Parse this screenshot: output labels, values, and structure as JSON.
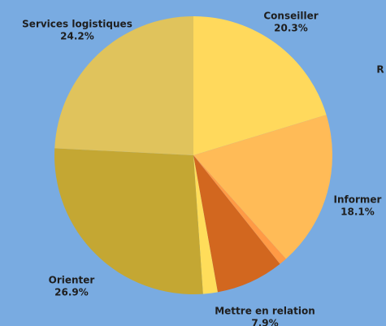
{
  "chart_data": {
    "type": "pie",
    "categories": [
      "Conseiller",
      "Informer",
      null,
      "Mettre en relation",
      null,
      "Orienter",
      "Services logistiques"
    ],
    "values": [
      20.3,
      18.1,
      0.9,
      7.9,
      1.7,
      26.9,
      24.2
    ],
    "value_labels": [
      "20.3%",
      "18.1%",
      null,
      "7.9%",
      null,
      "26.9%",
      "24.2%"
    ],
    "colors": [
      "#ffd95c",
      "#ffbb57",
      "#ff9a45",
      "#d2671f",
      "#ffdd5a",
      "#c4a733",
      "#e0c35c"
    ],
    "annotations": [
      "R"
    ]
  }
}
